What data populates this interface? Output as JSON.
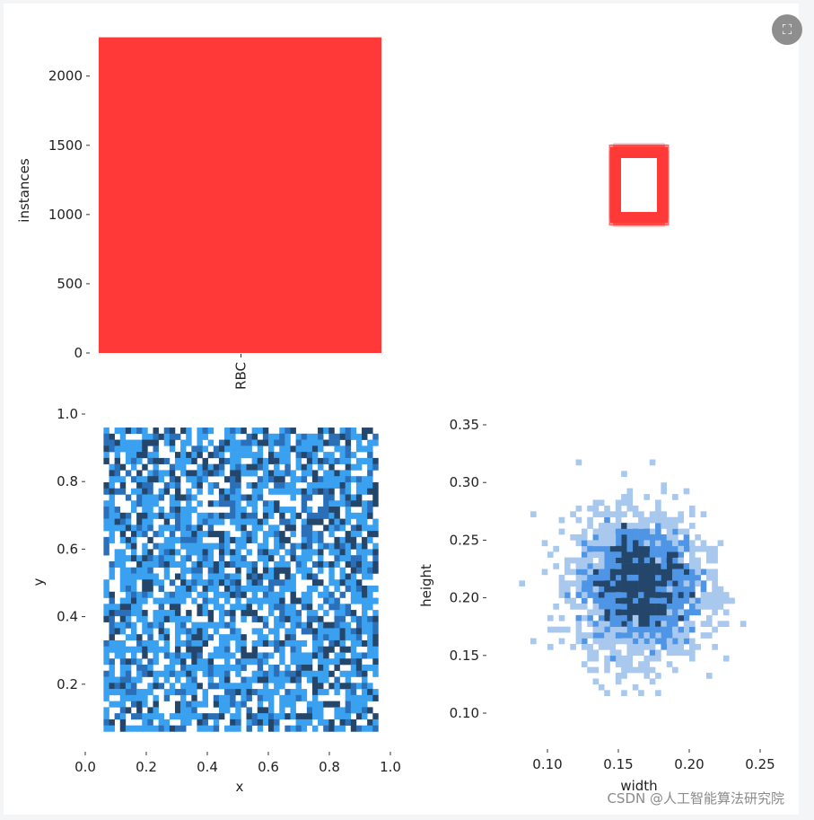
{
  "chart_data": [
    {
      "id": "labels",
      "type": "bar",
      "categories": [
        "RBC"
      ],
      "values": [
        2280
      ],
      "ylabel": "instances",
      "yticks": [
        0,
        500,
        1000,
        1500,
        2000
      ],
      "ylim": [
        0,
        2290
      ],
      "bar_color": "#ff3838"
    },
    {
      "id": "boxes",
      "type": "other",
      "description_color": "#ff3838"
    },
    {
      "id": "xy",
      "type": "heatmap",
      "xlabel": "x",
      "ylabel": "y",
      "xlim": [
        0,
        1.0
      ],
      "ylim": [
        0,
        1.0
      ],
      "xticks": [
        "0.0",
        "0.2",
        "0.4",
        "0.6",
        "0.8",
        "1.0"
      ],
      "yticks": [
        "0.2",
        "0.4",
        "0.6",
        "0.8",
        "1.0"
      ],
      "data_extent": {
        "x": [
          0.06,
          0.96
        ],
        "y": [
          0.06,
          0.96
        ]
      },
      "colors": [
        "#3aa0f0",
        "#2a6fb8",
        "#24466a"
      ]
    },
    {
      "id": "wh",
      "type": "heatmap",
      "xlabel": "width",
      "ylabel": "height",
      "xticks": [
        "0.10",
        "0.15",
        "0.20",
        "0.25"
      ],
      "yticks": [
        "0.10",
        "0.15",
        "0.20",
        "0.25",
        "0.30",
        "0.35"
      ],
      "center": {
        "width": 0.165,
        "height": 0.21
      },
      "spread": {
        "width": 0.022,
        "height": 0.03
      },
      "colors": [
        "#a8c8ee",
        "#4f95e6",
        "#24466a"
      ]
    }
  ],
  "ui": {
    "zoom_icon": "expand-icon",
    "watermark": "CSDN @人工智能算法研究院"
  }
}
